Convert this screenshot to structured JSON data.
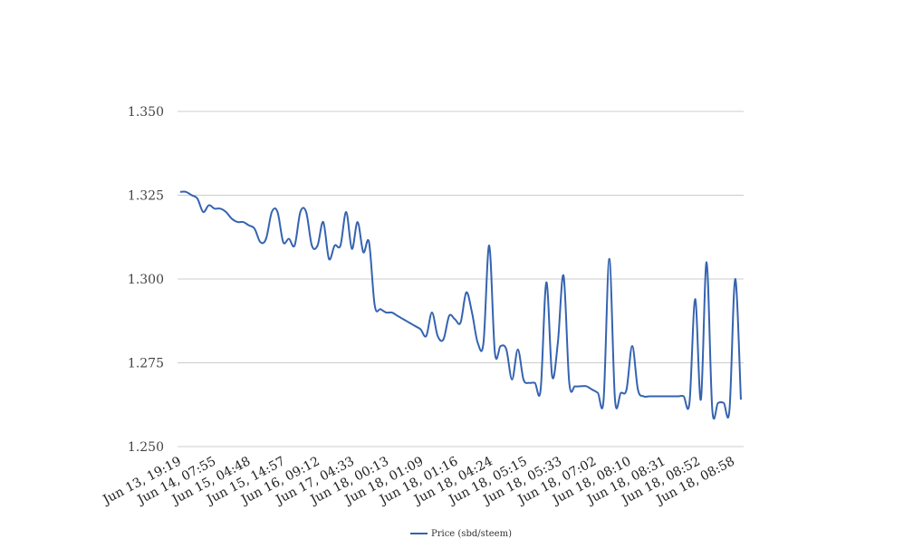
{
  "chart_data": {
    "type": "line",
    "title": "",
    "xlabel": "",
    "ylabel": "",
    "ylim": [
      1.25,
      1.35
    ],
    "grid": true,
    "legend_position": "bottom-center",
    "colors": {
      "series": "#3563b0",
      "grid": "#cccccc"
    },
    "yticks": [
      "1.250",
      "1.275",
      "1.300",
      "1.325",
      "1.350"
    ],
    "x_tick_labels": [
      "Jun 13, 19:19",
      "Jun 14, 07:55",
      "Jun 15, 04:48",
      "Jun 15, 14:57",
      "Jun 16, 09:12",
      "Jun 17, 04:33",
      "Jun 18, 00:13",
      "Jun 18, 01:09",
      "Jun 18, 01:16",
      "Jun 18, 04:24",
      "Jun 18, 05:15",
      "Jun 18, 05:33",
      "Jun 18, 07:02",
      "Jun 18, 08:10",
      "Jun 18, 08:31",
      "Jun 18, 08:52",
      "Jun 18, 08:58"
    ],
    "series": [
      {
        "name": "Price (sbd/steem)",
        "values": [
          1.326,
          1.326,
          1.325,
          1.324,
          1.32,
          1.322,
          1.321,
          1.321,
          1.32,
          1.318,
          1.317,
          1.317,
          1.316,
          1.315,
          1.311,
          1.312,
          1.32,
          1.32,
          1.311,
          1.312,
          1.31,
          1.32,
          1.32,
          1.31,
          1.31,
          1.317,
          1.306,
          1.31,
          1.31,
          1.32,
          1.309,
          1.317,
          1.308,
          1.311,
          1.292,
          1.291,
          1.29,
          1.29,
          1.289,
          1.288,
          1.287,
          1.286,
          1.285,
          1.283,
          1.29,
          1.283,
          1.282,
          1.289,
          1.288,
          1.287,
          1.296,
          1.29,
          1.281,
          1.281,
          1.31,
          1.278,
          1.28,
          1.279,
          1.27,
          1.279,
          1.27,
          1.269,
          1.269,
          1.267,
          1.299,
          1.271,
          1.281,
          1.301,
          1.269,
          1.268,
          1.268,
          1.268,
          1.267,
          1.266,
          1.264,
          1.306,
          1.264,
          1.266,
          1.267,
          1.28,
          1.267,
          1.265,
          1.265,
          1.265,
          1.265,
          1.265,
          1.265,
          1.265,
          1.265,
          1.263,
          1.294,
          1.264,
          1.305,
          1.261,
          1.263,
          1.263,
          1.261,
          1.3,
          1.264
        ]
      }
    ]
  }
}
